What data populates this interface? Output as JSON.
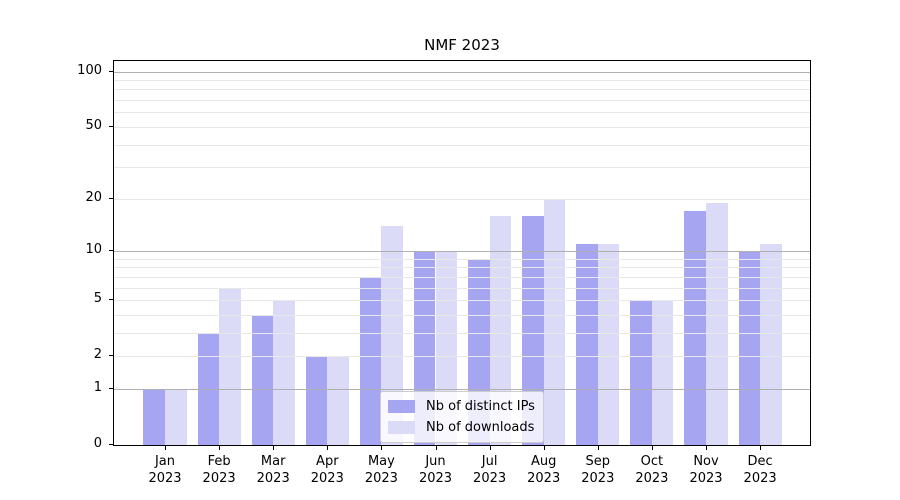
{
  "chart_data": {
    "type": "bar",
    "title": "NMF 2023",
    "x": {
      "months": [
        "Jan",
        "Feb",
        "Mar",
        "Apr",
        "May",
        "Jun",
        "Jul",
        "Aug",
        "Sep",
        "Oct",
        "Nov",
        "Dec"
      ],
      "year": "2023"
    },
    "series": [
      {
        "name": "Nb of distinct IPs",
        "color": "#a5a5f1",
        "values": [
          1,
          3,
          4,
          2,
          7,
          10,
          9,
          16,
          11,
          5,
          17,
          10
        ]
      },
      {
        "name": "Nb of downloads",
        "color": "#dbdbf8",
        "values": [
          1,
          6,
          5,
          2,
          14,
          10,
          16,
          20,
          11,
          5,
          19,
          11
        ]
      }
    ],
    "y_axis": {
      "scale": "log1p",
      "ylim": [
        0,
        114
      ],
      "tick_values": [
        100,
        50,
        20,
        10,
        5,
        2,
        1,
        0
      ],
      "major_gridlines": [
        1,
        10,
        100
      ],
      "minor_gridlines": [
        2,
        3,
        4,
        5,
        6,
        7,
        8,
        9,
        20,
        30,
        40,
        50,
        60,
        70,
        80,
        90
      ]
    },
    "legend": {
      "position": "lower center"
    },
    "grid": true,
    "colors": {
      "major_grid": "#b0b0b0",
      "minor_grid": "#e8e8e8",
      "spine": "#000000",
      "text": "#000000"
    }
  }
}
